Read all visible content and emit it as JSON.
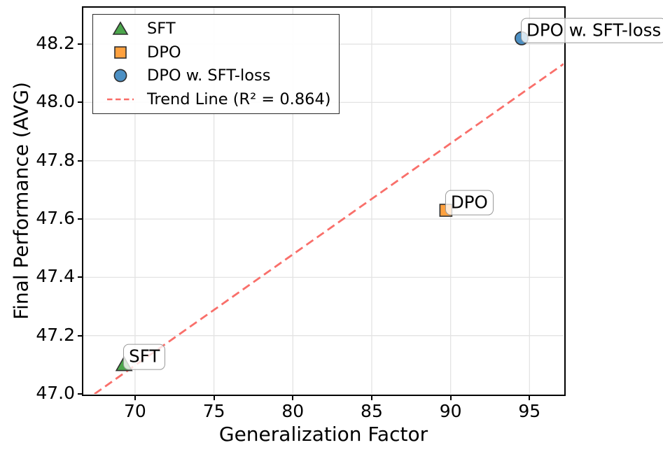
{
  "chart_data": {
    "type": "scatter",
    "title": "",
    "xlabel": "Generalization Factor",
    "ylabel": "Final Performance (AVG)",
    "xlim": [
      66.72,
      97.16
    ],
    "ylim": [
      47.0,
      48.325
    ],
    "grid": true,
    "grid_color": "#e3e3e3",
    "x_ticks": [
      {
        "value": 70,
        "label": "70"
      },
      {
        "value": 75,
        "label": "75"
      },
      {
        "value": 80,
        "label": "80"
      },
      {
        "value": 85,
        "label": "85"
      },
      {
        "value": 90,
        "label": "90"
      },
      {
        "value": 95,
        "label": "95"
      }
    ],
    "y_ticks": [
      {
        "value": 47.0,
        "label": "47.0"
      },
      {
        "value": 47.2,
        "label": "47.2"
      },
      {
        "value": 47.4,
        "label": "47.4"
      },
      {
        "value": 47.6,
        "label": "47.6"
      },
      {
        "value": 47.8,
        "label": "47.8"
      },
      {
        "value": 48.0,
        "label": "48.0"
      },
      {
        "value": 48.2,
        "label": "48.2"
      }
    ],
    "series": [
      {
        "name": "SFT",
        "marker": "triangle",
        "fill": "#4CA64C",
        "edge": "#2e2e2e",
        "annotation": "SFT",
        "points": [
          {
            "x": 69.3,
            "y": 47.1
          }
        ]
      },
      {
        "name": "DPO",
        "marker": "square",
        "fill": "#FFA13F",
        "edge": "#2e2e2e",
        "annotation": "DPO",
        "points": [
          {
            "x": 89.7,
            "y": 47.63
          }
        ]
      },
      {
        "name": "DPO w. SFT-loss",
        "marker": "circle",
        "fill": "#4C90C4",
        "edge": "#2e2e2e",
        "annotation": "DPO w. SFT-loss",
        "points": [
          {
            "x": 94.5,
            "y": 48.22
          }
        ]
      }
    ],
    "trend_line": {
      "label": "Trend Line (R² = 0.864)",
      "r_squared": 0.864,
      "color": "#F85B55",
      "endpoints": [
        {
          "x": 67.43,
          "y": 47.0
        },
        {
          "x": 97.16,
          "y": 48.132
        }
      ]
    },
    "legend_position": "upper-left"
  }
}
